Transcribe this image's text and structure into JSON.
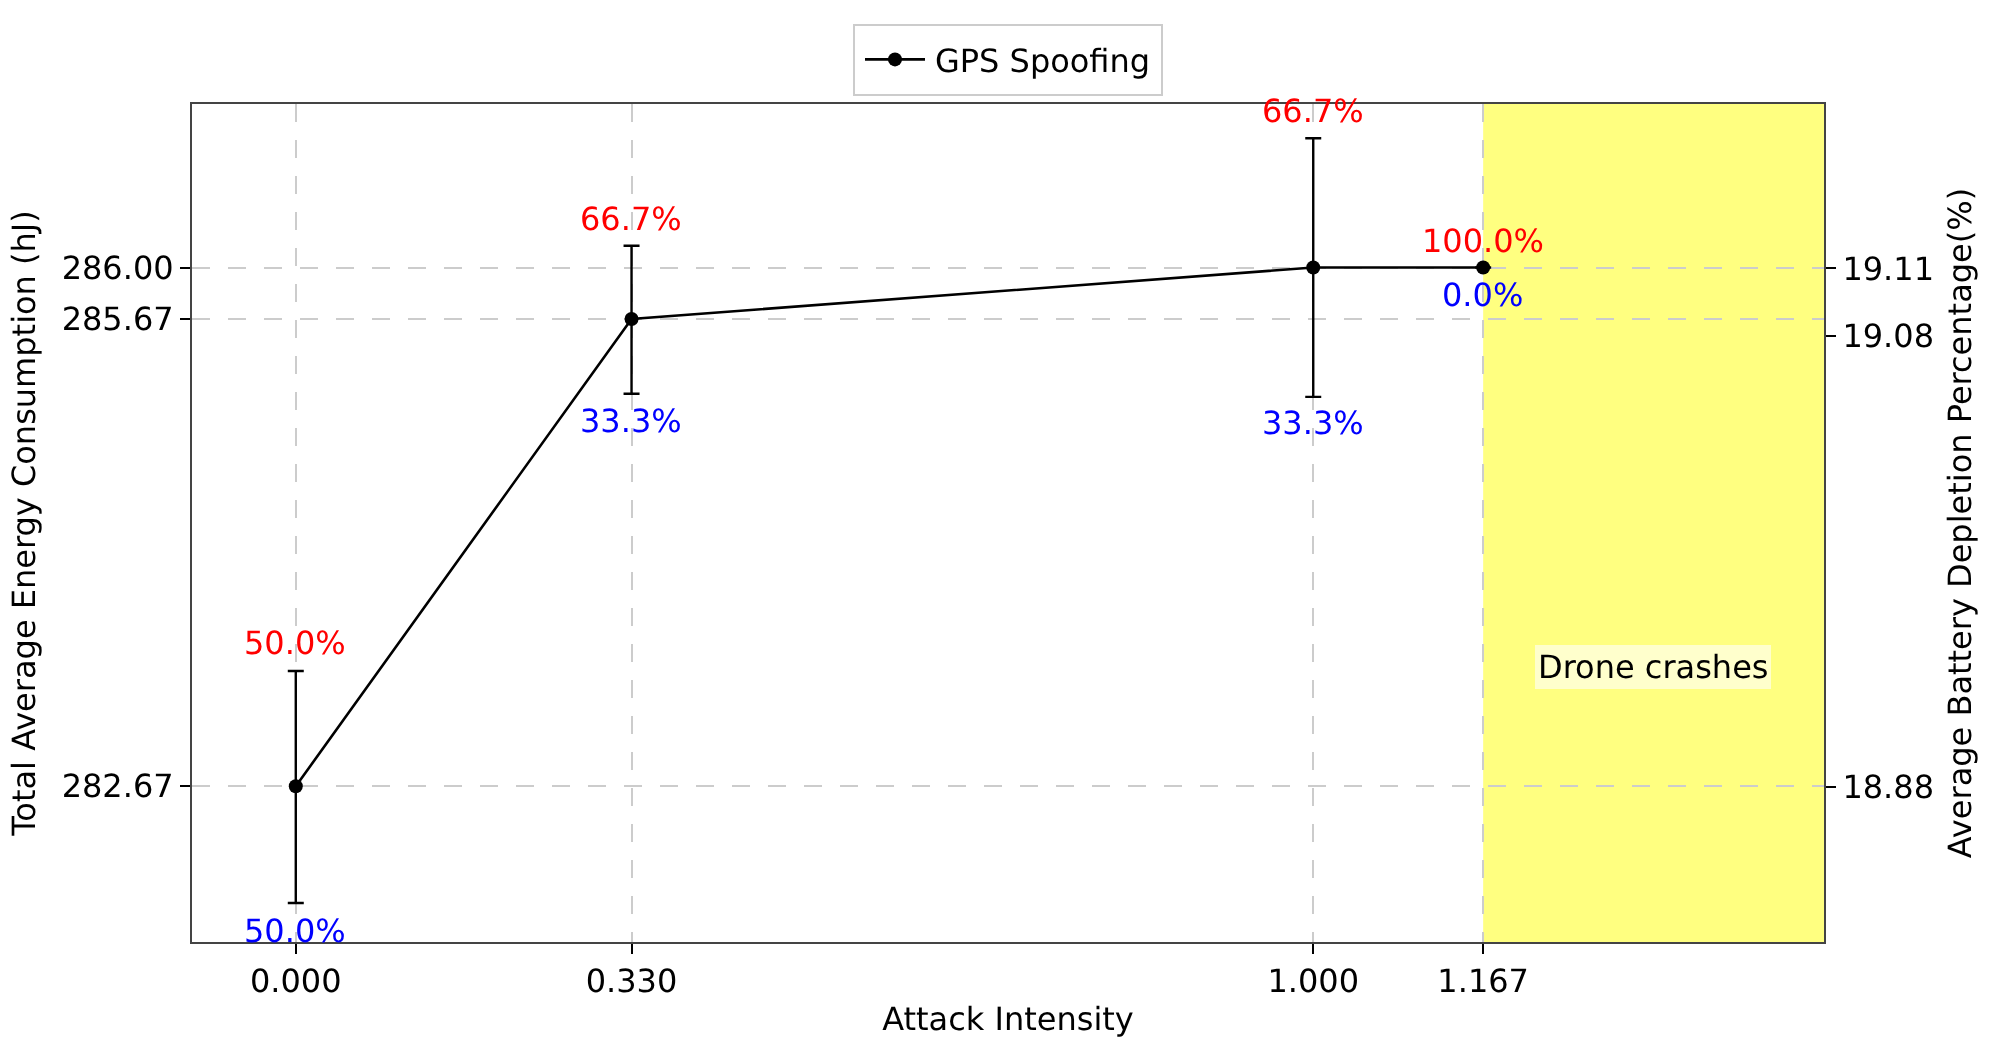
{
  "chart_data": {
    "type": "line",
    "xlabel": "Attack Intensity",
    "ylabel": "Total Average Energy Consumption (hJ)",
    "y2label": "Average Battery Depletion Percentage(%)",
    "x": [
      0.0,
      0.33,
      1.0,
      1.167
    ],
    "series": [
      {
        "name": "GPS Spoofing",
        "color": "#000000",
        "values": [
          282.67,
          285.67,
          286.0,
          286.0
        ],
        "errors": [
          [
            281.92,
            283.41
          ],
          [
            285.19,
            286.14
          ],
          [
            285.17,
            286.83
          ],
          null
        ]
      }
    ],
    "xlim": [
      -0.102,
      1.502
    ],
    "xticks": [
      {
        "value": 0,
        "label": "0.000"
      },
      {
        "value": 0.33,
        "label": "0.330"
      },
      {
        "value": 1.0,
        "label": "1.000"
      },
      {
        "value": 1.167,
        "label": "1.167"
      }
    ],
    "ylim": [
      281.67,
      287.05
    ],
    "yticks": [
      {
        "value": 282.67,
        "label": "282.67"
      },
      {
        "value": 285.67,
        "label": "285.67"
      },
      {
        "value": 286.0,
        "label": "286.00"
      }
    ],
    "y2lim": [
      18.811,
      19.183
    ],
    "y2ticks": [
      18.88,
      19.08,
      19.11
    ],
    "annotations": [
      {
        "text": "50.0%",
        "x": 0.0,
        "y": 283.41
      },
      {
        "text": "50.0%",
        "x": 0.0,
        "y": 281.92
      },
      {
        "text": "66.7%",
        "x": 0.33,
        "y": 286.14
      },
      {
        "text": "33.3%",
        "x": 0.33,
        "y": 285.19
      },
      {
        "text": "66.7%",
        "x": 1.0,
        "y": 286.83
      },
      {
        "text": "33.3%",
        "x": 1.0,
        "y": 285.17
      },
      {
        "text": "100.0%",
        "x": 1.167,
        "y": 286.0
      },
      {
        "text": "0.0%",
        "x": 1.167,
        "y": 286.0
      }
    ],
    "bands": [
      {
        "axis": "x",
        "from": 1.167,
        "to": 1.502,
        "label": "Drone crashes",
        "color": "#ffff80"
      }
    ],
    "grid": true,
    "legend": "top",
    "marker": "circle",
    "line_style": "solid"
  }
}
